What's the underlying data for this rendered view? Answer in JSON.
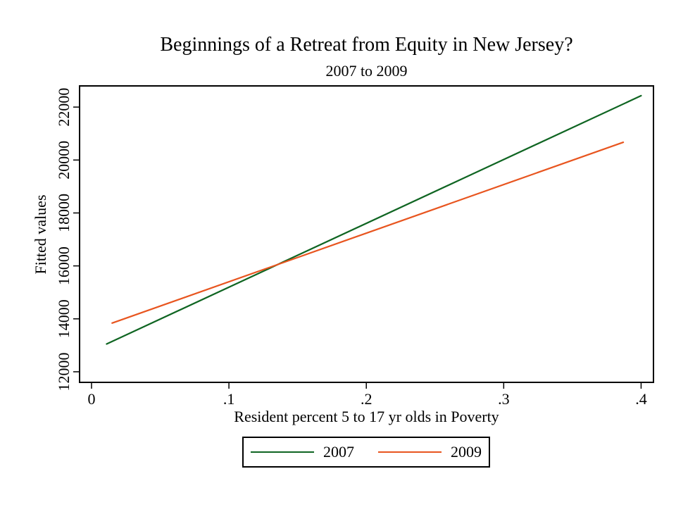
{
  "chart_data": {
    "type": "line",
    "title": "Beginnings of a Retreat from Equity in New Jersey?",
    "subtitle": "2007 to 2009",
    "xlabel": "Resident percent 5 to 17 yr olds in Poverty",
    "ylabel": "Fitted values",
    "xlim": [
      -0.0087,
      0.409
    ],
    "ylim": [
      11600,
      22800
    ],
    "xticks": [
      {
        "value": 0,
        "label": "0"
      },
      {
        "value": 0.1,
        "label": ".1"
      },
      {
        "value": 0.2,
        "label": ".2"
      },
      {
        "value": 0.3,
        "label": ".3"
      },
      {
        "value": 0.4,
        "label": ".4"
      }
    ],
    "yticks": [
      {
        "value": 12000,
        "label": "12000"
      },
      {
        "value": 14000,
        "label": "14000"
      },
      {
        "value": 16000,
        "label": "16000"
      },
      {
        "value": 18000,
        "label": "18000"
      },
      {
        "value": 20000,
        "label": "20000"
      },
      {
        "value": 22000,
        "label": "22000"
      }
    ],
    "grid": false,
    "frame_color": "#000000",
    "background": "#ffffff",
    "legend_position": "bottom-center",
    "series": [
      {
        "name": "2007",
        "color": "#0f6522",
        "x": [
          0.011,
          0.4
        ],
        "y": [
          13050,
          22430
        ]
      },
      {
        "name": "2009",
        "color": "#e8551f",
        "x": [
          0.015,
          0.387
        ],
        "y": [
          13840,
          20670
        ]
      }
    ]
  }
}
